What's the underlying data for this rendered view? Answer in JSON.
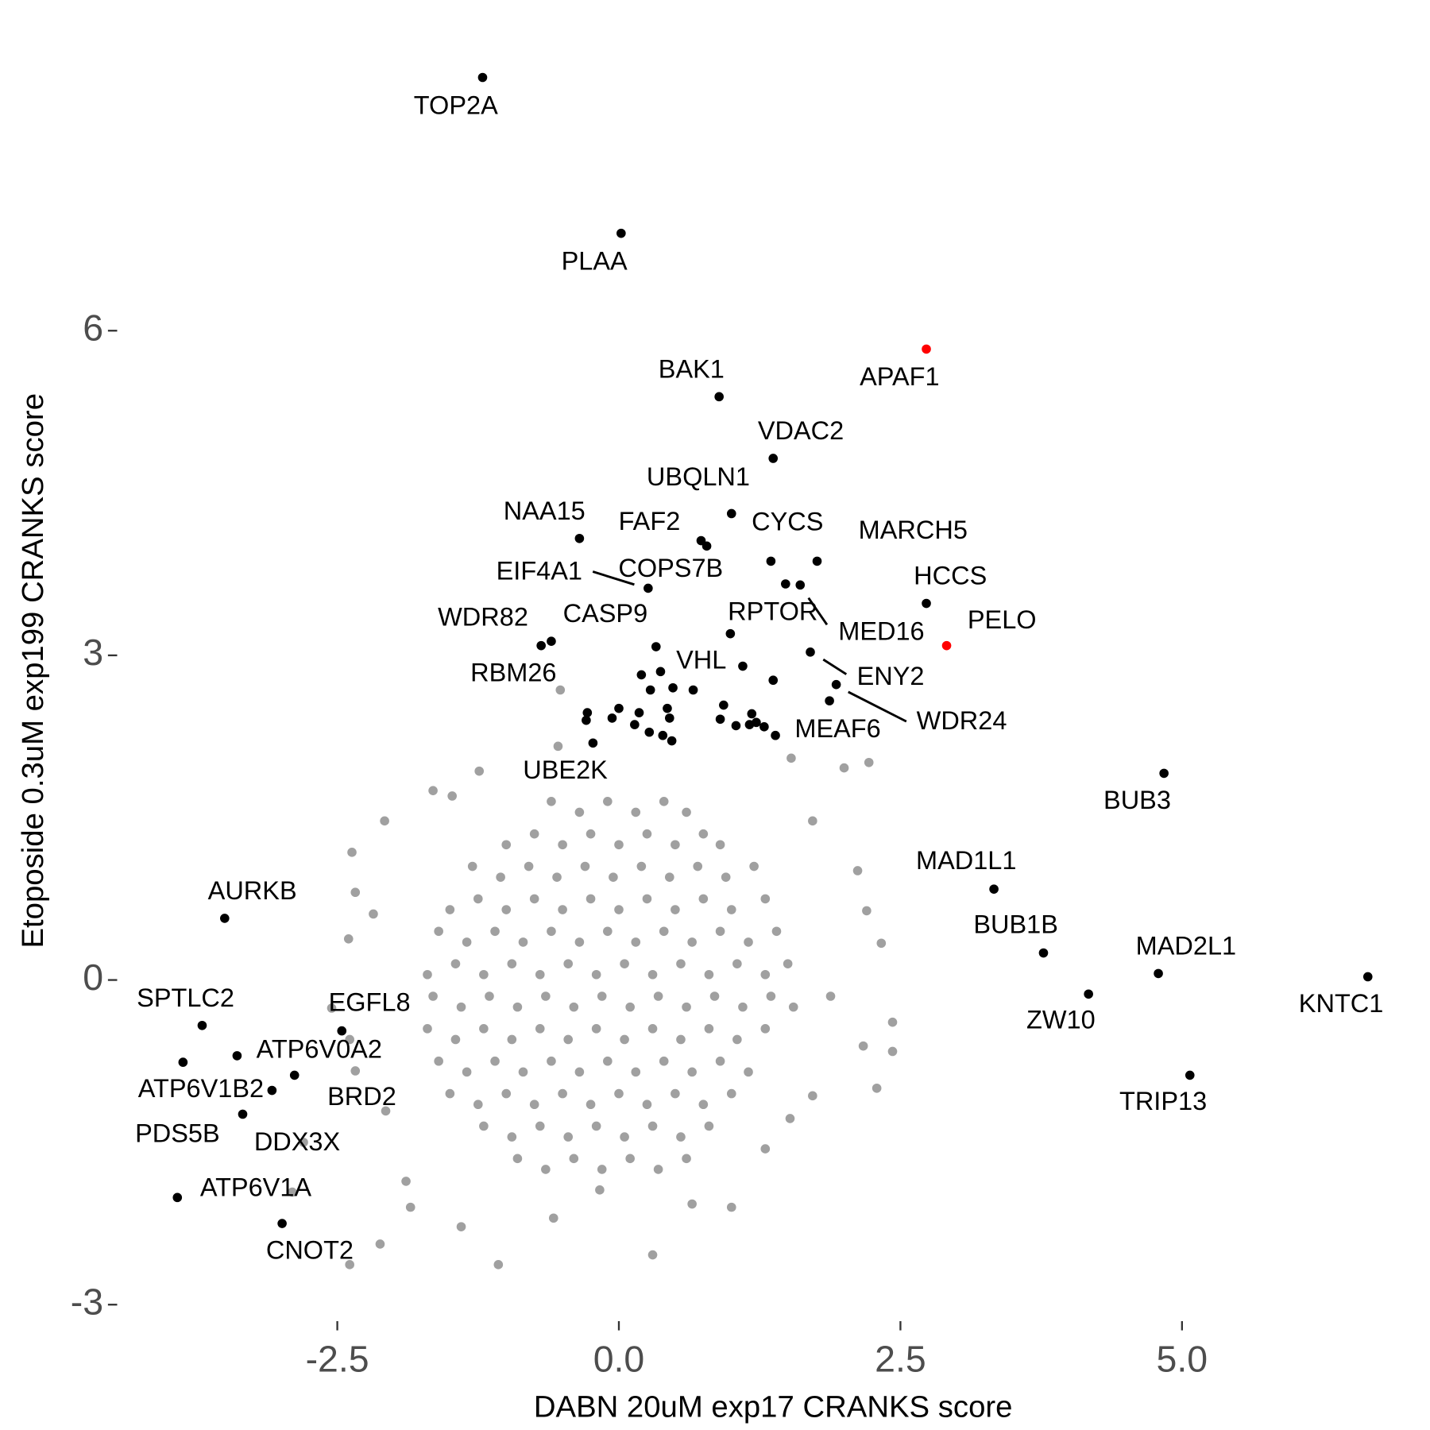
{
  "chart_data": {
    "type": "scatter",
    "xlabel": "DABN 20uM exp17 CRANKS score",
    "ylabel": "Etoposide 0.3uM exp199 CRANKS score",
    "xlim": [
      -4.43,
      7.12
    ],
    "ylim": [
      -3.05,
      8.8
    ],
    "xticks": [
      -2.5,
      {
        "value": 0,
        "label": "0.0"
      },
      2.5,
      {
        "value": 5,
        "label": "5.0"
      }
    ],
    "yticks": [
      -3,
      0,
      3,
      6
    ],
    "grid": false,
    "series": [
      {
        "color": "#a0a0a0",
        "x": [
          -0.6,
          -0.35,
          -0.1,
          0.15,
          0.4,
          0.6,
          -1.0,
          -0.75,
          -0.5,
          -0.25,
          0,
          0.25,
          0.5,
          0.75,
          0.9,
          -1.3,
          -1.05,
          -0.8,
          -0.55,
          -0.3,
          -0.05,
          0.2,
          0.45,
          0.7,
          0.95,
          1.2,
          -1.5,
          -1.25,
          -1.0,
          -0.75,
          -0.5,
          -0.25,
          0,
          0.25,
          0.5,
          0.75,
          1.0,
          1.3,
          -1.6,
          -1.35,
          -1.1,
          -0.85,
          -0.6,
          -0.35,
          -0.1,
          0.15,
          0.4,
          0.65,
          0.9,
          1.15,
          1.4,
          -1.7,
          -1.45,
          -1.2,
          -0.95,
          -0.7,
          -0.45,
          -0.2,
          0.05,
          0.3,
          0.55,
          0.8,
          1.05,
          1.3,
          1.5,
          -1.65,
          -1.4,
          -1.15,
          -0.9,
          -0.65,
          -0.4,
          -0.15,
          0.1,
          0.35,
          0.6,
          0.85,
          1.1,
          1.35,
          1.55,
          -1.7,
          -1.45,
          -1.2,
          -0.95,
          -0.7,
          -0.45,
          -0.2,
          0.05,
          0.3,
          0.55,
          0.8,
          1.05,
          1.3,
          -1.6,
          -1.35,
          -1.1,
          -0.85,
          -0.6,
          -0.35,
          -0.1,
          0.15,
          0.4,
          0.65,
          0.9,
          1.15,
          -1.5,
          -1.25,
          -1.0,
          -0.75,
          -0.5,
          -0.25,
          0,
          0.25,
          0.5,
          0.75,
          1.0,
          -1.2,
          -0.95,
          -0.7,
          -0.45,
          -0.2,
          0.05,
          0.3,
          0.55,
          0.8,
          -0.9,
          -0.65,
          -0.4,
          -0.15,
          0.1,
          0.35,
          0.6,
          -0.52,
          -0.54,
          -1.24,
          -1.65,
          -1.48,
          2.22,
          2.0,
          1.53,
          -2.08,
          -2.37,
          -2.34,
          -2.4,
          -2.18,
          -2.39,
          -2.55,
          -2.34,
          -2.8,
          -2.9,
          -2.39,
          -2.12,
          -1.85,
          -1.07,
          0.3,
          1.0,
          2.43,
          2.43,
          2.17,
          2.33,
          2.2,
          2.12,
          1.72,
          1.52,
          1.72,
          2.29,
          -2.07,
          -1.89,
          -0.58,
          -1.4,
          -0.17,
          0.65,
          1.3,
          1.88
        ],
        "y": [
          1.65,
          1.55,
          1.65,
          1.55,
          1.65,
          1.55,
          1.25,
          1.35,
          1.25,
          1.35,
          1.25,
          1.35,
          1.25,
          1.35,
          1.25,
          1.05,
          0.95,
          1.05,
          0.95,
          1.05,
          0.95,
          1.05,
          0.95,
          1.05,
          0.95,
          1.05,
          0.65,
          0.75,
          0.65,
          0.75,
          0.65,
          0.75,
          0.65,
          0.75,
          0.65,
          0.75,
          0.65,
          0.75,
          0.45,
          0.35,
          0.45,
          0.35,
          0.45,
          0.35,
          0.45,
          0.35,
          0.45,
          0.35,
          0.45,
          0.35,
          0.45,
          0.05,
          0.15,
          0.05,
          0.15,
          0.05,
          0.15,
          0.05,
          0.15,
          0.05,
          0.15,
          0.05,
          0.15,
          0.05,
          0.15,
          -0.15,
          -0.25,
          -0.15,
          -0.25,
          -0.15,
          -0.25,
          -0.15,
          -0.25,
          -0.15,
          -0.25,
          -0.15,
          -0.25,
          -0.15,
          -0.25,
          -0.45,
          -0.55,
          -0.45,
          -0.55,
          -0.45,
          -0.55,
          -0.45,
          -0.55,
          -0.45,
          -0.55,
          -0.45,
          -0.55,
          -0.45,
          -0.75,
          -0.85,
          -0.75,
          -0.85,
          -0.75,
          -0.85,
          -0.75,
          -0.85,
          -0.75,
          -0.85,
          -0.75,
          -0.85,
          -1.05,
          -1.15,
          -1.05,
          -1.15,
          -1.05,
          -1.15,
          -1.05,
          -1.15,
          -1.05,
          -1.15,
          -1.05,
          -1.35,
          -1.45,
          -1.35,
          -1.45,
          -1.35,
          -1.45,
          -1.35,
          -1.45,
          -1.35,
          -1.65,
          -1.75,
          -1.65,
          -1.75,
          -1.65,
          -1.75,
          -1.65,
          2.68,
          2.16,
          1.93,
          1.75,
          1.7,
          2.01,
          1.96,
          2.05,
          1.47,
          1.18,
          0.81,
          0.38,
          0.61,
          -0.55,
          -0.26,
          -0.84,
          -1.5,
          -1.96,
          -2.63,
          -2.44,
          -2.1,
          -2.63,
          -2.54,
          -2.1,
          -0.39,
          -0.66,
          -0.61,
          0.34,
          0.64,
          1.01,
          1.47,
          -1.28,
          -1.07,
          -1.0,
          -1.21,
          -1.86,
          -2.2,
          -2.28,
          -1.94,
          -2.07,
          -1.56,
          -0.15
        ]
      },
      {
        "color": "#000000",
        "x": [
          -1.21,
          0.02,
          0.89,
          1.37,
          1.0,
          -0.35,
          0.73,
          1.35,
          1.76,
          0.26,
          0.78,
          2.73,
          0.99,
          1.61,
          -0.69,
          0.33,
          -0.6,
          1.1,
          1.7,
          1.93,
          1.87,
          -0.23,
          4.84,
          3.33,
          -3.5,
          3.77,
          4.79,
          6.65,
          4.17,
          -3.7,
          -2.46,
          -3.39,
          -3.87,
          -2.88,
          -3.08,
          -3.34,
          5.07,
          -3.92,
          -2.99,
          1.48,
          0.37,
          0.2,
          1.37,
          0.28,
          0.48,
          0.66,
          0.93,
          0,
          0.43,
          -0.28,
          -0.06,
          0.18,
          1.18,
          0.45,
          0.9,
          -0.29,
          1.22,
          1.04,
          1.29,
          1.16,
          1.39,
          0.27,
          0.39,
          0.47,
          0.14
        ],
        "y": [
          8.34,
          6.9,
          5.39,
          4.82,
          4.31,
          4.08,
          4.06,
          3.87,
          3.87,
          3.62,
          4.01,
          3.48,
          3.2,
          3.65,
          3.09,
          3.08,
          3.13,
          2.9,
          3.03,
          2.73,
          2.58,
          2.19,
          1.91,
          0.84,
          0.57,
          0.25,
          0.06,
          0.03,
          -0.13,
          -0.42,
          -0.47,
          -0.7,
          -0.76,
          -0.88,
          -1.02,
          -1.24,
          -0.88,
          -2.01,
          -2.25,
          3.66,
          2.85,
          2.82,
          2.77,
          2.68,
          2.7,
          2.68,
          2.54,
          2.51,
          2.51,
          2.47,
          2.42,
          2.47,
          2.46,
          2.42,
          2.41,
          2.4,
          2.38,
          2.35,
          2.34,
          2.36,
          2.26,
          2.29,
          2.26,
          2.21,
          2.36
        ],
        "labels": [
          "TOP2A",
          "PLAA",
          "BAK1",
          "VDAC2",
          "UBQLN1",
          "NAA15",
          "FAF2",
          "CYCS",
          "MARCH5",
          "EIF4A1",
          "COPS7B",
          "HCCS",
          "RPTOR",
          "MED16",
          "WDR82",
          "CASP9",
          "RBM26",
          "VHL",
          "ENY2",
          "WDR24",
          "MEAF6",
          "UBE2K",
          "BUB3",
          "MAD1L1",
          "AURKB",
          "BUB1B",
          "MAD2L1",
          "KNTC1",
          "ZW10",
          "SPTLC2",
          "EGFL8",
          "ATP6V0A2",
          "PDS5B",
          "BRD2",
          "ATP6V1B2",
          "DDX3X",
          "TRIP13",
          "ATP6V1A",
          "CNOT2",
          null,
          null,
          null,
          null,
          null,
          null,
          null,
          null,
          null,
          null,
          null,
          null,
          null,
          null,
          null,
          null,
          null,
          null,
          null,
          null,
          null,
          null,
          null,
          null,
          null,
          null
        ]
      },
      {
        "color": "#ff0000",
        "x": [
          2.73,
          2.91
        ],
        "y": [
          5.83,
          3.09
        ],
        "labels": [
          "APAF1",
          "PELO"
        ]
      }
    ]
  }
}
